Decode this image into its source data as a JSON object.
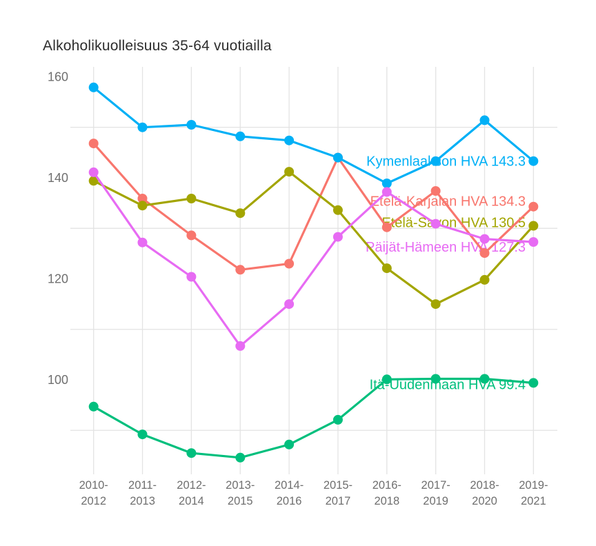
{
  "chart_data": {
    "type": "line",
    "title": "Alkoholikuolleisuus 35-64 vuotiailla",
    "xlabel": "",
    "ylabel": "",
    "categories": [
      "2010-2012",
      "2011-2013",
      "2012-2014",
      "2013-2015",
      "2014-2016",
      "2015-2017",
      "2016-2018",
      "2017-2019",
      "2018-2020",
      "2019-2021"
    ],
    "yticks": [
      100,
      120,
      140,
      160
    ],
    "grid_values": [
      90,
      110,
      130,
      150
    ],
    "ylim": [
      82,
      162
    ],
    "grid": "on",
    "legend_position": "inline-right-labels",
    "background_color": "#ffffff",
    "gridline_color": "#e3e3e3",
    "axis_text_color": "#6f6f6f",
    "title_color": "#2e2e2e",
    "series": [
      {
        "name": "Kymenlaakson HVA",
        "label": "Kymenlaakson HVA 143.3",
        "last_value": 143.3,
        "color": "#00B0F6",
        "values": [
          157.9,
          150.0,
          150.5,
          148.2,
          147.4,
          144.0,
          138.9,
          143.3,
          151.4,
          143.3
        ]
      },
      {
        "name": "Etelä-Karjalan HVA",
        "label": "Etelä-Karjalan HVA 134.3",
        "last_value": 134.3,
        "color": "#F8766D",
        "values": [
          146.8,
          135.9,
          128.6,
          121.8,
          123.0,
          144.0,
          130.2,
          137.4,
          125.1,
          134.3
        ]
      },
      {
        "name": "Etelä-Savon HVA",
        "label": "Etelä-Savon HVA 130.5",
        "last_value": 130.5,
        "color": "#A3A500",
        "values": [
          139.4,
          134.5,
          135.9,
          133.0,
          141.2,
          133.6,
          122.1,
          115.0,
          119.8,
          130.5
        ]
      },
      {
        "name": "Päijät-Hämeen HVA",
        "label": "Päijät-Hämeen HVA 127.3",
        "last_value": 127.3,
        "color": "#E76BF3",
        "values": [
          141.1,
          127.2,
          120.4,
          106.7,
          115.0,
          128.3,
          137.2,
          130.9,
          127.9,
          127.3
        ]
      },
      {
        "name": "Itä-Uudenmaan HVA",
        "label": "Itä-Uudenmaan HVA 99.4",
        "last_value": 99.4,
        "color": "#00BF7D",
        "values": [
          94.7,
          89.2,
          85.5,
          84.6,
          87.2,
          92.1,
          100.1,
          100.2,
          100.2,
          99.4
        ]
      }
    ]
  }
}
